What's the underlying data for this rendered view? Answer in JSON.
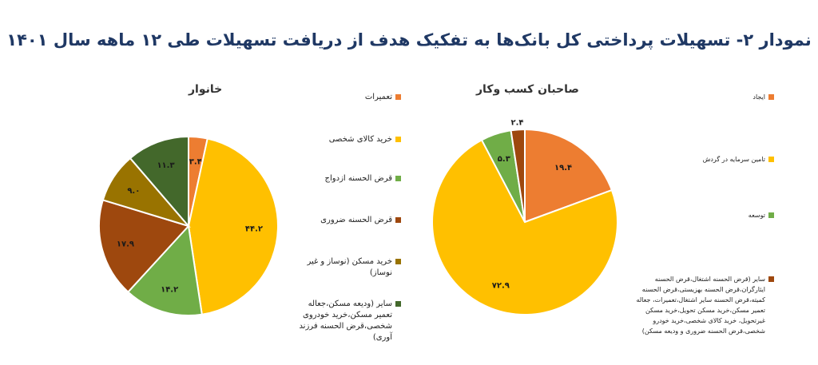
{
  "title": "نمودار ۲- تسهیلات پرداختی کل بانک‌ها به تفکیک هدف از دریافت تسهیلات طی ۱۲ ماهه سال ۱۴۰۱",
  "chart_data": [
    {
      "type": "pie",
      "title": "خانوار",
      "categories": [
        "تعمیرات",
        "خرید کالای شخصی",
        "قرض الحسنه ازدواج",
        "قرض الحسنه ضروری",
        "خرید مسکن (نوساز و غیر نوساز)",
        "سایر (ودیعه مسکن،جعاله تعمیر مسکن،خرید خودروی شخصی،قرض الحسنه فرزند آوری)"
      ],
      "values": [
        3.4,
        44.2,
        14.2,
        17.9,
        9.0,
        11.3
      ],
      "value_labels": [
        "۳.۴",
        "۴۴.۲",
        "۱۴.۲",
        "۱۷.۹",
        "۹.۰",
        "۱۱.۳"
      ],
      "colors": [
        "#ed7d31",
        "#ffc000",
        "#70ad47",
        "#9e480e",
        "#997300",
        "#43682b"
      ],
      "legend_position": "right"
    },
    {
      "type": "pie",
      "title": "صاحبان کسب وکار",
      "categories": [
        "ایجاد",
        "تامین سرمایه در گردش",
        "توسعه",
        "سایر (قرض الحسنه اشتغال،قرض الحسنه ایثارگران،قرض الحسنه بهزیستی،قرض الحسنه کمیته،قرض الحسنه سایر اشتغال،تعمیرات، جعاله تعمیر مسکن،خرید مسکن تحویل،خرید مسکن غیرتحویل، خرید کالای شخصی،خرید خودرو شخصی،قرض الحسنه ضروری و ودیعه مسکن)"
      ],
      "values": [
        19.4,
        72.9,
        5.3,
        2.4
      ],
      "value_labels": [
        "۱۹.۴",
        "۷۲.۹",
        "۵.۳",
        "۲.۴"
      ],
      "colors": [
        "#ed7d31",
        "#ffc000",
        "#70ad47",
        "#9e480e"
      ],
      "legend_position": "right"
    }
  ]
}
